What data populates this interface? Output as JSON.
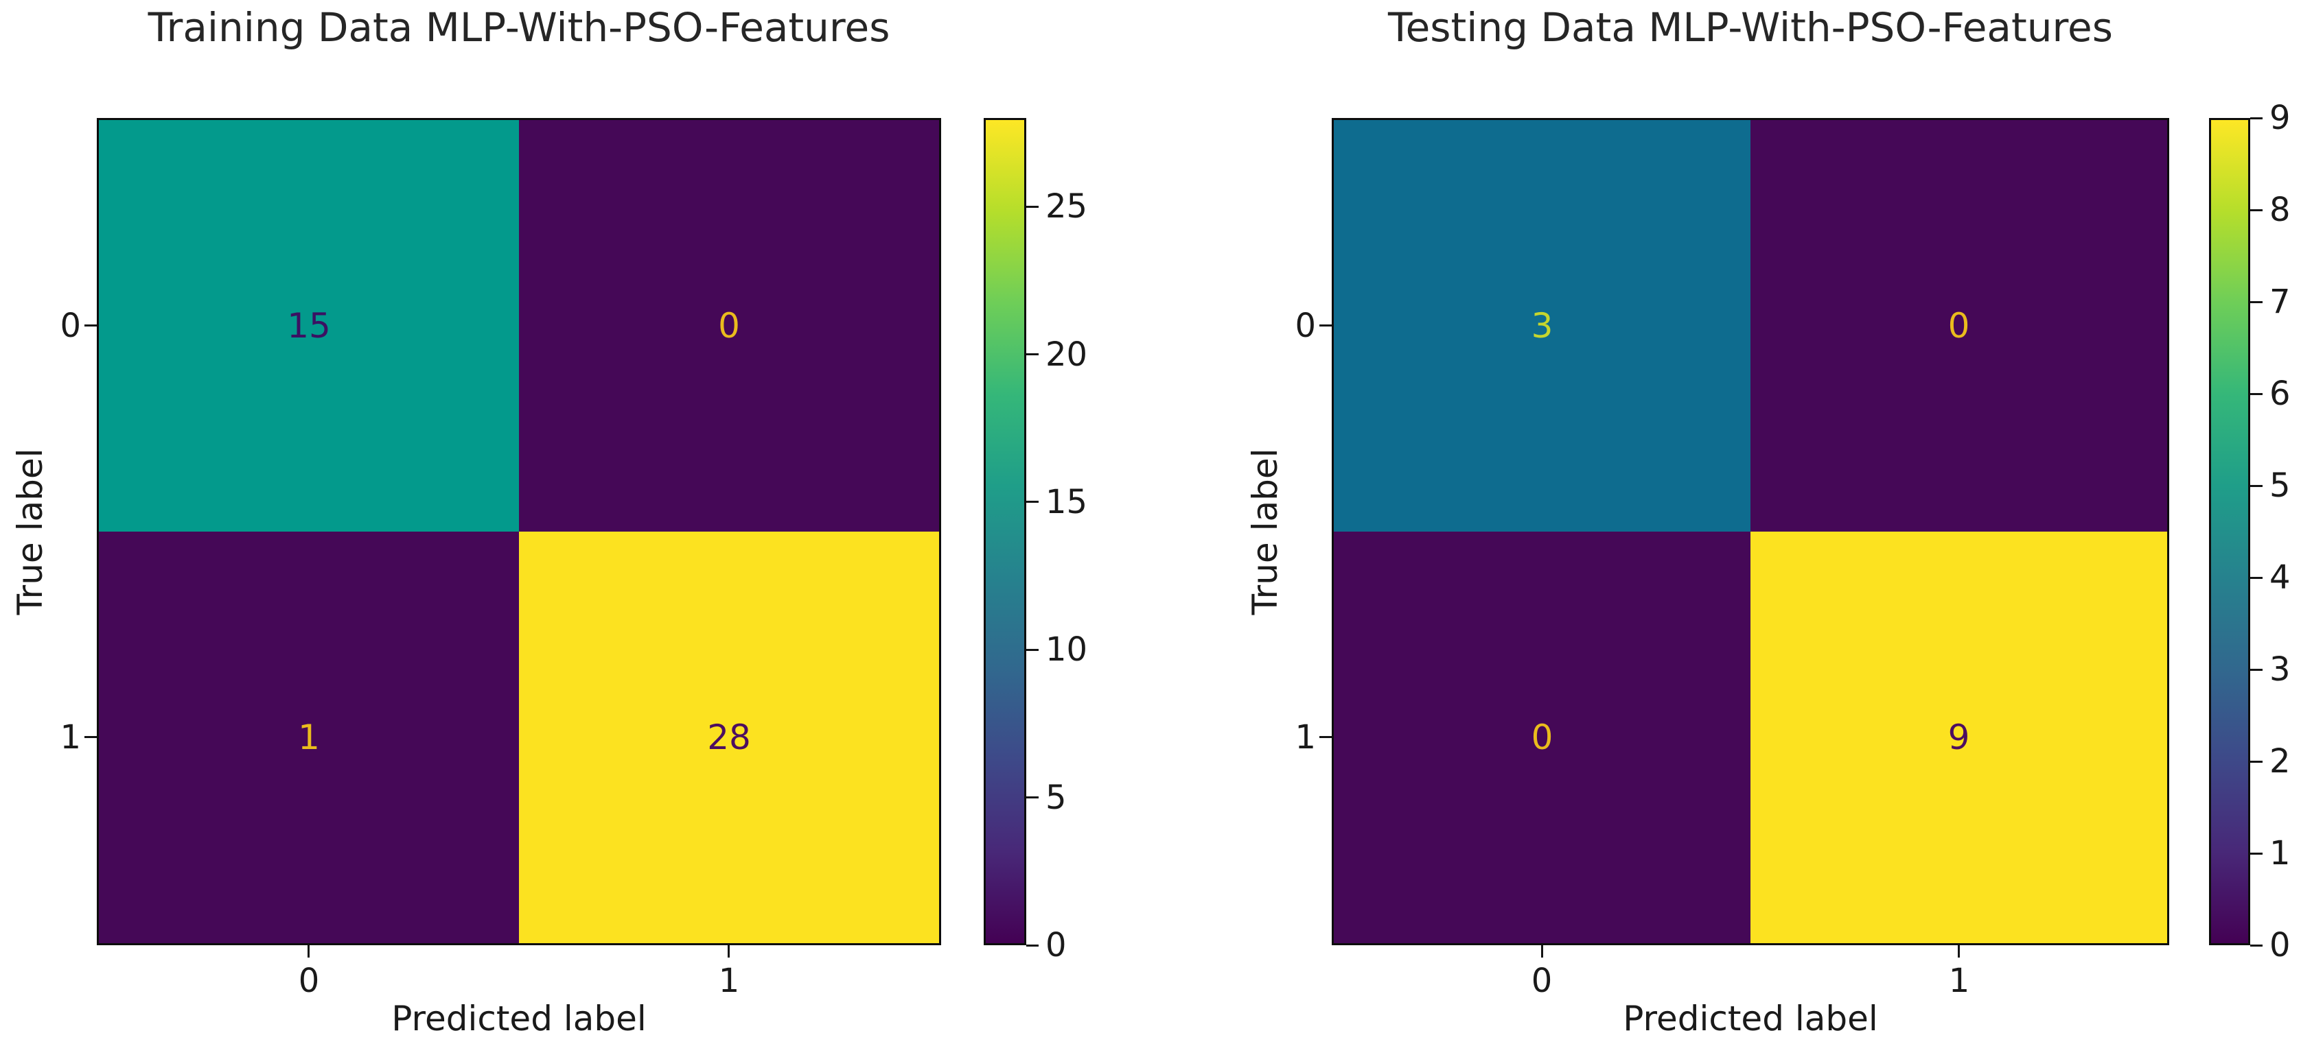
{
  "page": {
    "background": "#ffffff"
  },
  "viridis": [
    "#440154",
    "#482878",
    "#3e4989",
    "#31688e",
    "#26828e",
    "#1f9e89",
    "#35b779",
    "#6ece58",
    "#b5de2b",
    "#fde725"
  ],
  "plots": [
    {
      "title": "Training Data MLP-With-PSO-Features",
      "xlabel": "Predicted label",
      "ylabel": "True label",
      "xticks": [
        "0",
        "1"
      ],
      "yticks": [
        "0",
        "1"
      ],
      "cells": {
        "r0c0": {
          "value": "15",
          "bg": "#039a8c",
          "fg": "#3b1162"
        },
        "r0c1": {
          "value": "0",
          "bg": "#450857",
          "fg": "#eabc1d"
        },
        "r1c0": {
          "value": "1",
          "bg": "#450857",
          "fg": "#eabc1d"
        },
        "r1c1": {
          "value": "28",
          "bg": "#fce220",
          "fg": "#4c0e60"
        }
      },
      "colorbar": {
        "vmin": 0,
        "vmax": 28,
        "ticks": [
          0,
          5,
          10,
          15,
          20,
          25
        ]
      }
    },
    {
      "title": "Testing Data MLP-With-PSO-Features",
      "xlabel": "Predicted label",
      "ylabel": "True label",
      "xticks": [
        "0",
        "1"
      ],
      "yticks": [
        "0",
        "1"
      ],
      "cells": {
        "r0c0": {
          "value": "3",
          "bg": "#0e6c8f",
          "fg": "#c5d62e"
        },
        "r0c1": {
          "value": "0",
          "bg": "#450857",
          "fg": "#eabc1d"
        },
        "r1c0": {
          "value": "0",
          "bg": "#450857",
          "fg": "#eabc1d"
        },
        "r1c1": {
          "value": "9",
          "bg": "#fce220",
          "fg": "#4c0e60"
        }
      },
      "colorbar": {
        "vmin": 0,
        "vmax": 9,
        "ticks": [
          0,
          1,
          2,
          3,
          4,
          5,
          6,
          7,
          8,
          9
        ]
      }
    }
  ],
  "chart_data": [
    {
      "type": "heatmap",
      "title": "Training Data MLP-With-PSO-Features",
      "xlabel": "Predicted label",
      "ylabel": "True label",
      "x_categories": [
        "0",
        "1"
      ],
      "y_categories": [
        "0",
        "1"
      ],
      "matrix": [
        [
          15,
          0
        ],
        [
          1,
          28
        ]
      ],
      "cell_labels": [
        [
          "15",
          "0"
        ],
        [
          "1",
          "28"
        ]
      ],
      "colormap": "viridis",
      "vmin": 0,
      "vmax": 28,
      "colorbar_ticks": [
        0,
        5,
        10,
        15,
        20,
        25
      ],
      "colorbar_position": "right",
      "grid": false
    },
    {
      "type": "heatmap",
      "title": "Testing Data MLP-With-PSO-Features",
      "xlabel": "Predicted label",
      "ylabel": "True label",
      "x_categories": [
        "0",
        "1"
      ],
      "y_categories": [
        "0",
        "1"
      ],
      "matrix": [
        [
          3,
          0
        ],
        [
          0,
          9
        ]
      ],
      "cell_labels": [
        [
          "3",
          "0"
        ],
        [
          "0",
          "9"
        ]
      ],
      "colormap": "viridis",
      "vmin": 0,
      "vmax": 9,
      "colorbar_ticks": [
        0,
        1,
        2,
        3,
        4,
        5,
        6,
        7,
        8,
        9
      ],
      "colorbar_position": "right",
      "grid": false
    }
  ]
}
